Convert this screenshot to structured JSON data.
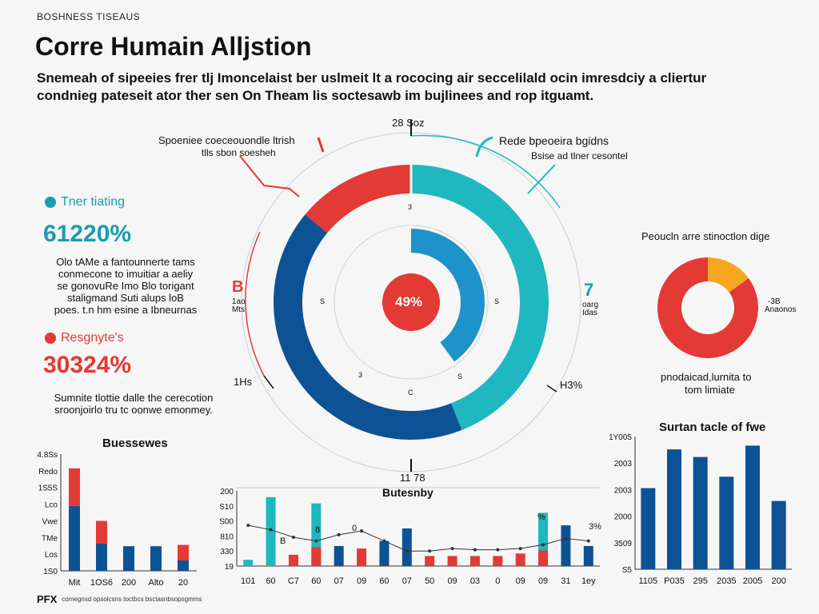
{
  "header": {
    "kicker": "BOSHNESS TISEAUS",
    "title": "Corre Humain Alljstion",
    "subtitle_lines": [
      "Snemeah of sipeeies frer tlj Imoncelaist ber uslmeit lt a rococing air seccelilald ocin imresdciy a cliertur",
      "condnieg pateseit ator ther sen On Theam lis soctesawb im bujlinees and rop itguamt."
    ]
  },
  "left_stats": [
    {
      "title": "Tner tiating",
      "value": "61220%",
      "color": "#1a9cb3",
      "text": [
        "Olo tAMe a fantounnerte tams",
        "conmecone to imuitiar a aeliy",
        "se gonovuRe Imo Blo torigant",
        "staligmand Suti alups loB",
        "poes. t.n hm esine a Ibneurnas"
      ]
    },
    {
      "title": "Resgnyte's",
      "value": "30324%",
      "color": "#e33a35",
      "text": [
        "Sumnite tlottie dalle the cerecotion",
        "sroonjoirlo tru tc oonwe emonmey."
      ]
    }
  ],
  "donut_main": {
    "top_label": "28 Soz",
    "center_label": "49%",
    "callout_left_title": "Spoeniee coeceouondle ltrish",
    "callout_left_sub": "tlls sbon soesheh",
    "callout_right_title": "Rede bpeoeira bgidns",
    "callout_right_sub": "Bsise ad tlner cesontel",
    "side_left_top": "B",
    "side_left_sub": [
      "1ao",
      "Mts"
    ],
    "side_right_top": "7",
    "side_right_sub": [
      "oarg",
      "Idas"
    ],
    "bottom_left": "1Hs",
    "bottom_right": "H3%",
    "bottom": "11 78",
    "inner_marks": [
      "3",
      "S",
      "S",
      "S",
      "C",
      "3"
    ]
  },
  "chart_data": [
    {
      "type": "pie",
      "title": "Corre Humain Alljstion",
      "rings": [
        {
          "name": "outer",
          "slices": [
            {
              "label": "red",
              "value": 14,
              "color": "#e33a35"
            },
            {
              "label": "teal",
              "value": 44,
              "color": "#1fb7c0"
            },
            {
              "label": "navy",
              "value": 42,
              "color": "#0d5294"
            }
          ]
        },
        {
          "name": "inner",
          "slices": [
            {
              "label": "blue",
              "value": 40,
              "color": "#1e93c9"
            },
            {
              "label": "empty",
              "value": 60,
              "color": "#f6f6f6"
            }
          ]
        }
      ],
      "center_value": "49%"
    },
    {
      "type": "pie",
      "title": "Peoucln arre stinoctlon dige",
      "slices": [
        {
          "label": "orange",
          "value": 15,
          "color": "#f5a71e"
        },
        {
          "label": "red",
          "value": 85,
          "color": "#e33a35"
        }
      ],
      "value_label": "-3B",
      "value_sub": "Anaonos",
      "caption": [
        "pnodaicad,lurnita to",
        "tom limiate"
      ]
    },
    {
      "type": "bar",
      "title": "Buessewes",
      "categories": [
        "Mit",
        "1OS6",
        "200",
        "Alto",
        "20"
      ],
      "series": [
        {
          "name": "navy",
          "color": "#0d5294",
          "values": [
            100,
            42,
            38,
            38,
            16
          ]
        },
        {
          "name": "red",
          "color": "#e33a35",
          "values": [
            58,
            35,
            0,
            0,
            24
          ]
        }
      ],
      "ytick_labels": [
        "4.8Ss",
        "Redo",
        "1S5S",
        "Lco",
        "Vwe",
        "TMe",
        "Los",
        "1S0"
      ],
      "ylim": [
        0,
        180
      ]
    },
    {
      "type": "bar",
      "title": "Butesnby",
      "categories": [
        "101",
        "60",
        "C7",
        "60",
        "07",
        "09",
        "60",
        "07",
        "50",
        "09",
        "03",
        "0",
        "09",
        "09",
        "31",
        "1ey"
      ],
      "series": [
        {
          "name": "teal",
          "color": "#1fb7c0",
          "values": [
            10,
            110,
            0,
            100,
            0,
            0,
            0,
            0,
            0,
            0,
            0,
            0,
            0,
            85,
            0,
            0
          ]
        },
        {
          "name": "red",
          "color": "#e33a35",
          "values": [
            0,
            0,
            18,
            30,
            0,
            28,
            18,
            0,
            16,
            16,
            16,
            16,
            20,
            25,
            0,
            0
          ]
        },
        {
          "name": "navy",
          "color": "#0d5294",
          "values": [
            0,
            0,
            0,
            0,
            32,
            0,
            40,
            60,
            0,
            0,
            0,
            0,
            0,
            0,
            65,
            32
          ]
        }
      ],
      "line": [
        65,
        58,
        46,
        40,
        50,
        56,
        40,
        24,
        24,
        28,
        26,
        26,
        28,
        34,
        44,
        40
      ],
      "annotations": [
        "B",
        "8",
        "0",
        "%",
        "3%"
      ],
      "ytick_labels": [
        "200",
        "S10",
        "S00",
        "810",
        "330",
        "19"
      ],
      "ylim": [
        0,
        120
      ]
    },
    {
      "type": "bar",
      "title": "Surtan tacle of fwe",
      "categories": [
        "1105",
        "P035",
        "295",
        "2035",
        "2005",
        "200"
      ],
      "values": [
        107,
        158,
        148,
        122,
        163,
        90
      ],
      "color": "#0d5294",
      "ytick_labels": [
        "1Y005",
        "2003",
        "2003",
        "2000",
        "3509",
        "S5"
      ],
      "ylim": [
        0,
        175
      ]
    }
  ],
  "footer": {
    "brand": "PFX",
    "note": "comegnsd opsoicsns toctbcs bsctasnbsopsgmms"
  }
}
